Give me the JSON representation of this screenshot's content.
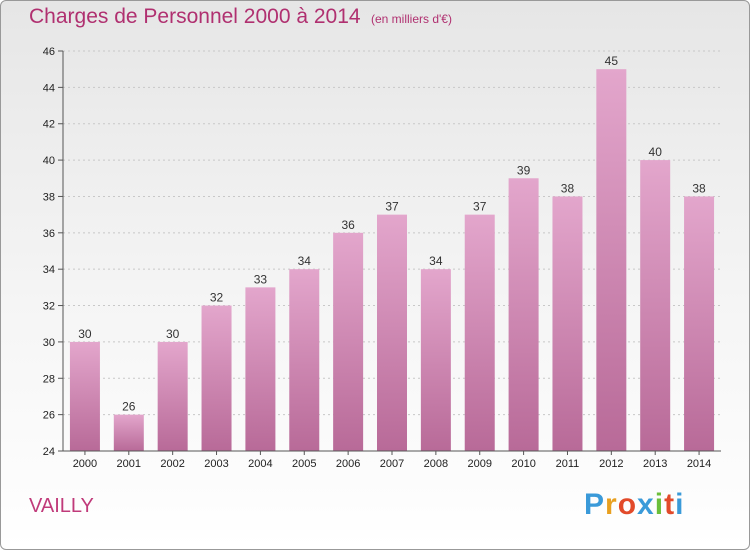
{
  "header": {
    "title": "Charges de Personnel 2000 à 2014",
    "subtitle": "(en milliers d'€)"
  },
  "footer": {
    "place": "VAILLY",
    "logo": {
      "letters": [
        "P",
        "r",
        "o",
        "x",
        "i",
        "t",
        "i"
      ],
      "colors": [
        "#3a9ad9",
        "#e8a020",
        "#e24a2a",
        "#3a9ad9",
        "#6bbf3a",
        "#e24a2a",
        "#3a9ad9"
      ]
    }
  },
  "colors": {
    "bar_top": "#e3a6cc",
    "bar_bottom": "#b86a98",
    "title": "#b03070",
    "grid": "#c8c8c8"
  },
  "chart_data": {
    "type": "bar",
    "categories": [
      "2000",
      "2001",
      "2002",
      "2003",
      "2004",
      "2005",
      "2006",
      "2007",
      "2008",
      "2009",
      "2010",
      "2011",
      "2012",
      "2013",
      "2014"
    ],
    "values": [
      30,
      26,
      30,
      32,
      33,
      34,
      36,
      37,
      34,
      37,
      39,
      38,
      45,
      40,
      38
    ],
    "title": "Charges de Personnel 2000 à 2014",
    "subtitle": "(en milliers d'€)",
    "xlabel": "",
    "ylabel": "",
    "ylim": [
      24,
      46
    ],
    "yticks": [
      24,
      26,
      28,
      30,
      32,
      34,
      36,
      38,
      40,
      42,
      44,
      46
    ],
    "grid": true,
    "data_labels": true
  }
}
